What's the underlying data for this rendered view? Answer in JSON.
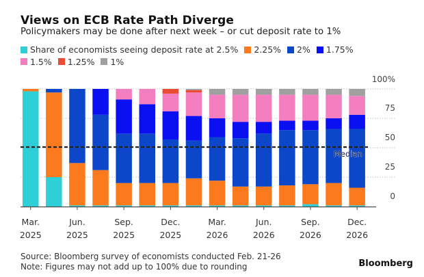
{
  "header": {
    "title": "Views on ECB Rate Path Diverge",
    "subtitle": "Policymakers may be done after next week – or cut deposit rate to 1%"
  },
  "footer": {
    "source": "Source: Bloomberg survey of economists conducted Feb. 21-26",
    "note": "Note: Figures may not add up to 100% due to rounding",
    "brand": "Bloomberg"
  },
  "chart_data": {
    "type": "bar",
    "stacked": true,
    "title": "Views on ECB Rate Path Diverge",
    "subtitle": "Policymakers may be done after next week – or cut deposit rate to 1%",
    "xlabel": "",
    "ylabel": "",
    "ylim": [
      0,
      100
    ],
    "y_ticks": [
      "0",
      "25",
      "50",
      "75",
      "100%"
    ],
    "y_tick_values": [
      0,
      25,
      50,
      75,
      100
    ],
    "y_axis_side": "right",
    "grid": "dotted horizontal",
    "legend_placement": "top-left",
    "categories": [
      "Mar. 2025",
      "",
      "Jun. 2025",
      "",
      "Sep. 2025",
      "",
      "Dec. 2025",
      "",
      "Mar. 2026",
      "",
      "Jun. 2026",
      "",
      "Sep. 2026",
      "",
      "Dec. 2026"
    ],
    "tick_labels": [
      {
        "index": 0,
        "line1": "Mar.",
        "line2": "2025"
      },
      {
        "index": 2,
        "line1": "Jun.",
        "line2": "2025"
      },
      {
        "index": 4,
        "line1": "Sep.",
        "line2": "2025"
      },
      {
        "index": 6,
        "line1": "Dec.",
        "line2": "2025"
      },
      {
        "index": 8,
        "line1": "Mar.",
        "line2": "2026"
      },
      {
        "index": 10,
        "line1": "Jun.",
        "line2": "2026"
      },
      {
        "index": 12,
        "line1": "Sep.",
        "line2": "2026"
      },
      {
        "index": 14,
        "line1": "Dec.",
        "line2": "2026"
      }
    ],
    "series": [
      {
        "name": "Share of economists seeing deposit rate at 2.5%",
        "legend": "Share of economists seeing deposit rate at 2.5%",
        "color": "#2ecfd6",
        "values": [
          98,
          25,
          1,
          1,
          1,
          1,
          1,
          1,
          1,
          1,
          1,
          1,
          2,
          1,
          1
        ]
      },
      {
        "name": "2.25%",
        "legend": "2.25%",
        "color": "#fb7a1e",
        "values": [
          2,
          72,
          36,
          30,
          19,
          19,
          19,
          23,
          21,
          16,
          16,
          17,
          17,
          19,
          15
        ]
      },
      {
        "name": "2%",
        "legend": "2%",
        "color": "#0b47c8",
        "values": [
          0,
          3,
          63,
          47,
          42,
          42,
          37,
          32,
          37,
          41,
          45,
          47,
          46,
          46,
          50
        ]
      },
      {
        "name": "1.75%",
        "legend": "1.75%",
        "color": "#0a10f0",
        "values": [
          0,
          0,
          0,
          22,
          29,
          25,
          24,
          21,
          16,
          14,
          10,
          8,
          8,
          9,
          12
        ]
      },
      {
        "name": "1.5%",
        "legend": "1.5%",
        "color": "#f47fc0",
        "values": [
          0,
          0,
          0,
          0,
          9,
          13,
          15,
          20,
          20,
          23,
          23,
          22,
          22,
          20,
          16
        ]
      },
      {
        "name": "1.25%",
        "legend": "1.25%",
        "color": "#ea4b33",
        "values": [
          0,
          0,
          0,
          0,
          0,
          0,
          4,
          2,
          0,
          0,
          0,
          0,
          0,
          0,
          0
        ]
      },
      {
        "name": "1%",
        "legend": "1%",
        "color": "#a0a0a0",
        "values": [
          0,
          0,
          0,
          0,
          0,
          0,
          0,
          1,
          5,
          5,
          5,
          5,
          5,
          5,
          6
        ]
      }
    ],
    "reference_line": {
      "label": "Median",
      "value": 50,
      "style": "dashed"
    }
  }
}
